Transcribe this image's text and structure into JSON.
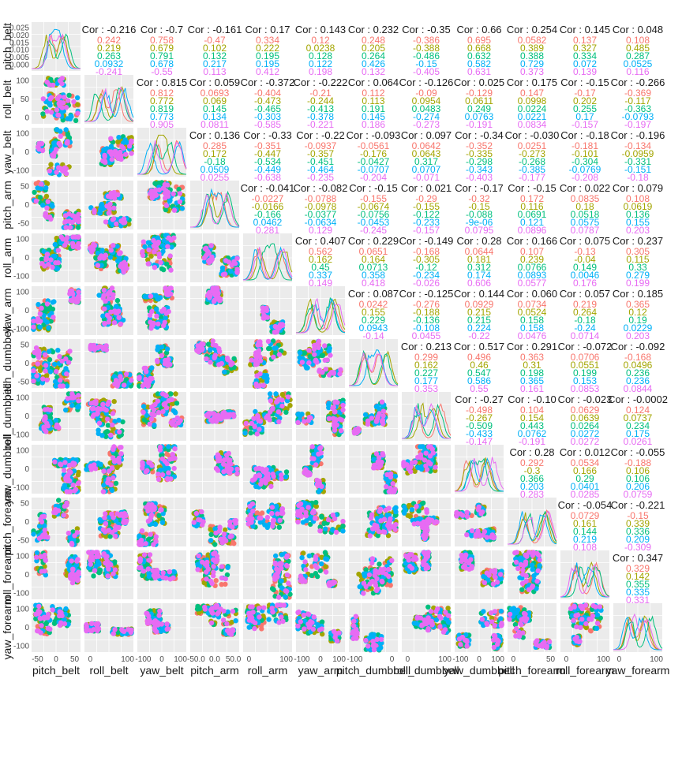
{
  "chart_data": {
    "type": "scatter-matrix",
    "title": "",
    "variables": [
      "pitch_belt",
      "roll_belt",
      "yaw_belt",
      "pitch_arm",
      "roll_arm",
      "yaw_arm",
      "pitch_dumbbell",
      "roll_dumbbell",
      "yaw_dumbbell",
      "pitch_forearm",
      "roll_forearm",
      "yaw_forearm"
    ],
    "group_colors": [
      "#F8766D",
      "#A3A500",
      "#00BF7D",
      "#00B0F6",
      "#E76BF3"
    ],
    "correlations": [
      {
        "row": 0,
        "col": 1,
        "overall": "-0.216",
        "groups": [
          "0.242",
          "0.219",
          "0.263",
          "0.0932",
          "-0.241"
        ]
      },
      {
        "row": 0,
        "col": 2,
        "overall": "-0.7",
        "groups": [
          "0.758",
          "0.679",
          "0.791",
          "0.678",
          "-0.55"
        ]
      },
      {
        "row": 0,
        "col": 3,
        "overall": "-0.161",
        "groups": [
          "-0.47",
          "0.102",
          "0.132",
          "0.217",
          "0.113"
        ]
      },
      {
        "row": 0,
        "col": 4,
        "overall": "0.17",
        "groups": [
          "0.334",
          "0.222",
          "0.195",
          "0.195",
          "0.412"
        ]
      },
      {
        "row": 0,
        "col": 5,
        "overall": "0.143",
        "groups": [
          "0.12",
          "0.0238",
          "0.128",
          "0.122",
          "0.198"
        ]
      },
      {
        "row": 0,
        "col": 6,
        "overall": "0.232",
        "groups": [
          "0.248",
          "0.205",
          "0.264",
          "0.426",
          "0.132"
        ]
      },
      {
        "row": 0,
        "col": 7,
        "overall": "-0.35",
        "groups": [
          "-0.386",
          "-0.388",
          "-0.486",
          "-0.15",
          "-0.405"
        ]
      },
      {
        "row": 0,
        "col": 8,
        "overall": "0.66",
        "groups": [
          "0.695",
          "0.668",
          "0.632",
          "0.582",
          "0.631"
        ]
      },
      {
        "row": 0,
        "col": 9,
        "overall": "0.254",
        "groups": [
          "0.0582",
          "0.389",
          "0.388",
          "0.729",
          "0.373"
        ]
      },
      {
        "row": 0,
        "col": 10,
        "overall": "0.145",
        "groups": [
          "0.137",
          "0.327",
          "0.334",
          "0.072",
          "0.139"
        ]
      },
      {
        "row": 0,
        "col": 11,
        "overall": "0.048",
        "groups": [
          "0.108",
          "0.485",
          "0.287",
          "0.0525",
          "0.116"
        ]
      },
      {
        "row": 1,
        "col": 2,
        "overall": "0.815",
        "groups": [
          "0.812",
          "0.772",
          "0.819",
          "0.773",
          "0.905"
        ]
      },
      {
        "row": 1,
        "col": 3,
        "overall": "0.059",
        "groups": [
          "0.0693",
          "0.069",
          "0.145",
          "0.134",
          "0.0811"
        ]
      },
      {
        "row": 1,
        "col": 4,
        "overall": "-0.372",
        "groups": [
          "-0.404",
          "-0.473",
          "-0.465",
          "-0.303",
          "-0.585"
        ]
      },
      {
        "row": 1,
        "col": 5,
        "overall": "-0.222",
        "groups": [
          "-0.21",
          "-0.244",
          "-0.413",
          "-0.378",
          "-0.221"
        ]
      },
      {
        "row": 1,
        "col": 6,
        "overall": "0.064",
        "groups": [
          "0.112",
          "0.113",
          "0.191",
          "0.145",
          "0.186"
        ]
      },
      {
        "row": 1,
        "col": 7,
        "overall": "-0.126",
        "groups": [
          "-0.09",
          "0.0954",
          "0.0483",
          "-0.274",
          "-0.273"
        ]
      },
      {
        "row": 1,
        "col": 8,
        "overall": "0.025",
        "groups": [
          "-0.129",
          "0.0611",
          "0.249",
          "0.0763",
          "-0.191"
        ]
      },
      {
        "row": 1,
        "col": 9,
        "overall": "0.175",
        "groups": [
          "0.147",
          "0.0998",
          "0.0224",
          "0.0221",
          "0.0834"
        ]
      },
      {
        "row": 1,
        "col": 10,
        "overall": "-0.15",
        "groups": [
          "-0.17",
          "0.202",
          "0.255",
          "0.17",
          "-0.157"
        ]
      },
      {
        "row": 1,
        "col": 11,
        "overall": "-0.266",
        "groups": [
          "-0.369",
          "-0.117",
          "-0.363",
          "-0.0793",
          "-0.197"
        ]
      },
      {
        "row": 2,
        "col": 3,
        "overall": "0.136",
        "groups": [
          "0.285",
          "0.172",
          "-0.18",
          "0.0509",
          "0.0255"
        ]
      },
      {
        "row": 2,
        "col": 4,
        "overall": "-0.33",
        "groups": [
          "-0.351",
          "-0.447",
          "-0.534",
          "-0.449",
          "-0.638"
        ]
      },
      {
        "row": 2,
        "col": 5,
        "overall": "-0.22",
        "groups": [
          "-0.0937",
          "-0.357",
          "-0.451",
          "-0.464",
          "-0.235"
        ]
      },
      {
        "row": 2,
        "col": 6,
        "overall": "-0.093",
        "groups": [
          "-0.0561",
          "-0.176",
          "-0.0427",
          "-0.0707",
          "-0.204"
        ]
      },
      {
        "row": 2,
        "col": 7,
        "overall": "0.097",
        "groups": [
          "0.0642",
          "0.0643",
          "0.317",
          "0.0707",
          "-0.071"
        ]
      },
      {
        "row": 2,
        "col": 8,
        "overall": "-0.34",
        "groups": [
          "-0.352",
          "-0.335",
          "-0.298",
          "-0.343",
          "-0.403"
        ]
      },
      {
        "row": 2,
        "col": 9,
        "overall": "-0.030",
        "groups": [
          "0.0251",
          "-0.273",
          "-0.268",
          "-0.385",
          "-0.177"
        ]
      },
      {
        "row": 2,
        "col": 10,
        "overall": "-0.18",
        "groups": [
          "-0.181",
          "-0.101",
          "-0.304",
          "-0.0769",
          "-0.208"
        ]
      },
      {
        "row": 2,
        "col": 11,
        "overall": "-0.196",
        "groups": [
          "-0.134",
          "-0.0959",
          "-0.331",
          "-0.151",
          "-0.18"
        ]
      },
      {
        "row": 3,
        "col": 4,
        "overall": "-0.041",
        "groups": [
          "-0.0227",
          "-0.0166",
          "-0.166",
          "0.0462",
          "0.281"
        ]
      },
      {
        "row": 3,
        "col": 5,
        "overall": "-0.082",
        "groups": [
          "-0.0788",
          "-0.0978",
          "-0.0377",
          "-0.0634",
          "0.129"
        ]
      },
      {
        "row": 3,
        "col": 6,
        "overall": "-0.15",
        "groups": [
          "-0.155",
          "-0.0674",
          "-0.0756",
          "-0.0453",
          "-0.245"
        ]
      },
      {
        "row": 3,
        "col": 7,
        "overall": "0.021",
        "groups": [
          "-0.29",
          "-0.155",
          "-0.122",
          "-0.233",
          "-0.157"
        ]
      },
      {
        "row": 3,
        "col": 8,
        "overall": "-0.17",
        "groups": [
          "-0.32",
          "-0.15",
          "-0.088",
          "-9e-06",
          "0.0795"
        ]
      },
      {
        "row": 3,
        "col": 9,
        "overall": "-0.15",
        "groups": [
          "0.172",
          "0.116",
          "0.0691",
          "0.121",
          "0.0896"
        ]
      },
      {
        "row": 3,
        "col": 10,
        "overall": "0.022",
        "groups": [
          "0.0835",
          "0.18",
          "0.0518",
          "0.0575",
          "0.0787"
        ]
      },
      {
        "row": 3,
        "col": 11,
        "overall": "0.079",
        "groups": [
          "0.108",
          "0.0619",
          "0.136",
          "0.155",
          "0.203"
        ]
      },
      {
        "row": 4,
        "col": 5,
        "overall": "0.407",
        "groups": [
          "0.562",
          "0.162",
          "0.45",
          "0.337",
          "0.149"
        ]
      },
      {
        "row": 4,
        "col": 6,
        "overall": "0.229",
        "groups": [
          "0.0651",
          "0.164",
          "0.0713",
          "0.358",
          "0.418"
        ]
      },
      {
        "row": 4,
        "col": 7,
        "overall": "-0.149",
        "groups": [
          "-0.168",
          "-0.305",
          "-0.12",
          "-0.234",
          "-0.026"
        ]
      },
      {
        "row": 4,
        "col": 8,
        "overall": "0.28",
        "groups": [
          "0.0644",
          "0.181",
          "0.312",
          "0.174",
          "0.606"
        ]
      },
      {
        "row": 4,
        "col": 9,
        "overall": "0.166",
        "groups": [
          "0.107",
          "0.239",
          "0.0766",
          "0.0893",
          "0.0577"
        ]
      },
      {
        "row": 4,
        "col": 10,
        "overall": "0.075",
        "groups": [
          "-0.13",
          "-0.04",
          "0.149",
          "0.0046",
          "0.176"
        ]
      },
      {
        "row": 4,
        "col": 11,
        "overall": "0.237",
        "groups": [
          "0.305",
          "0.115",
          "0.33",
          "0.279",
          "0.199"
        ]
      },
      {
        "row": 5,
        "col": 6,
        "overall": "0.087",
        "groups": [
          "0.0242",
          "0.155",
          "0.229",
          "0.0943",
          "-0.14"
        ]
      },
      {
        "row": 5,
        "col": 7,
        "overall": "-0.125",
        "groups": [
          "-0.276",
          "-0.188",
          "-0.136",
          "-0.108",
          "0.0455"
        ]
      },
      {
        "row": 5,
        "col": 8,
        "overall": "0.144",
        "groups": [
          "0.0929",
          "0.215",
          "0.215",
          "0.224",
          "-0.22"
        ]
      },
      {
        "row": 5,
        "col": 9,
        "overall": "0.060",
        "groups": [
          "0.0734",
          "0.0524",
          "0.158",
          "0.158",
          "0.0476"
        ]
      },
      {
        "row": 5,
        "col": 10,
        "overall": "0.057",
        "groups": [
          "0.219",
          "0.264",
          "-0.18",
          "-0.24",
          "0.0714"
        ]
      },
      {
        "row": 5,
        "col": 11,
        "overall": "0.185",
        "groups": [
          "0.365",
          "0.12",
          "0.19",
          "0.0229",
          "0.203"
        ]
      },
      {
        "row": 6,
        "col": 7,
        "overall": "0.213",
        "groups": [
          "0.299",
          "0.162",
          "0.227",
          "0.177",
          "0.353"
        ]
      },
      {
        "row": 6,
        "col": 8,
        "overall": "0.517",
        "groups": [
          "0.496",
          "0.46",
          "0.547",
          "0.586",
          "0.55"
        ]
      },
      {
        "row": 6,
        "col": 9,
        "overall": "0.291",
        "groups": [
          "0.363",
          "0.31",
          "0.198",
          "0.365",
          "0.161"
        ]
      },
      {
        "row": 6,
        "col": 10,
        "overall": "-0.072",
        "groups": [
          "0.0706",
          "0.0551",
          "0.199",
          "0.153",
          "0.0853"
        ]
      },
      {
        "row": 6,
        "col": 11,
        "overall": "-0.092",
        "groups": [
          "-0.168",
          "0.0496",
          "0.236",
          "0.236",
          "0.0844"
        ]
      },
      {
        "row": 7,
        "col": 8,
        "overall": "-0.27",
        "groups": [
          "-0.498",
          "-0.267",
          "-0.509",
          "-0.433",
          "-0.147"
        ]
      },
      {
        "row": 7,
        "col": 9,
        "overall": "-0.10",
        "groups": [
          "0.104",
          "0.154",
          "0.443",
          "0.0762",
          "-0.191"
        ]
      },
      {
        "row": 7,
        "col": 10,
        "overall": "-0.023",
        "groups": [
          "0.0629",
          "0.0639",
          "0.0264",
          "0.0272",
          "0.0272"
        ]
      },
      {
        "row": 7,
        "col": 11,
        "overall": "-0.0002",
        "groups": [
          "0.124",
          "0.0737",
          "0.234",
          "0.175",
          "0.0261"
        ]
      },
      {
        "row": 8,
        "col": 9,
        "overall": "0.28",
        "groups": [
          "0.292",
          "-0.3",
          "0.366",
          "0.203",
          "0.283"
        ]
      },
      {
        "row": 8,
        "col": 10,
        "overall": "0.012",
        "groups": [
          "0.0534",
          "0.166",
          "0.29",
          "0.0401",
          "0.0285"
        ]
      },
      {
        "row": 8,
        "col": 11,
        "overall": "-0.055",
        "groups": [
          "-0.188",
          "0.106",
          "0.106",
          "0.206",
          "0.0759"
        ]
      },
      {
        "row": 9,
        "col": 10,
        "overall": "-0.054",
        "groups": [
          "0.0729",
          "0.161",
          "0.144",
          "0.219",
          "0.108"
        ]
      },
      {
        "row": 9,
        "col": 11,
        "overall": "-0.221",
        "groups": [
          "-0.15",
          "0.339",
          "0.336",
          "0.209",
          "-0.309"
        ]
      },
      {
        "row": 10,
        "col": 11,
        "overall": "0.347",
        "groups": [
          "0.329",
          "0.142",
          "0.355",
          "0.335",
          "0.331"
        ]
      }
    ],
    "cor_prefix": "Cor : ",
    "x_ticks": [
      [
        "-50",
        "0",
        "50"
      ],
      [
        "0",
        "100"
      ],
      [
        "-100",
        "0",
        "100"
      ],
      [
        "-50.0",
        "0.0",
        "50.0"
      ],
      [
        "0",
        "100"
      ],
      [
        "-100",
        "0",
        "100"
      ],
      [
        "-100",
        "0"
      ],
      [
        "0",
        "100"
      ],
      [
        "-100",
        "0",
        "100"
      ],
      [
        "0",
        "50"
      ],
      [
        "0",
        "100"
      ],
      [
        "0",
        "100"
      ]
    ],
    "y_ticks": [
      [
        "0.025",
        "0.020",
        "0.015",
        "0.010",
        "0.005",
        "0.000"
      ],
      [
        "100",
        "50",
        "0"
      ],
      [
        "100",
        "0",
        "-100"
      ],
      [
        "50",
        "0",
        "-50"
      ],
      [
        "100",
        "0",
        "-100"
      ],
      [
        "100",
        "0",
        "-100"
      ],
      [
        "50",
        "0",
        "-50"
      ],
      [
        "100",
        "0",
        "-100"
      ],
      [
        "100",
        "0",
        "-100"
      ],
      [
        "50",
        "0",
        "-50"
      ],
      [
        "100",
        "0",
        "-100"
      ],
      [
        "100",
        "0",
        "-100"
      ]
    ]
  }
}
